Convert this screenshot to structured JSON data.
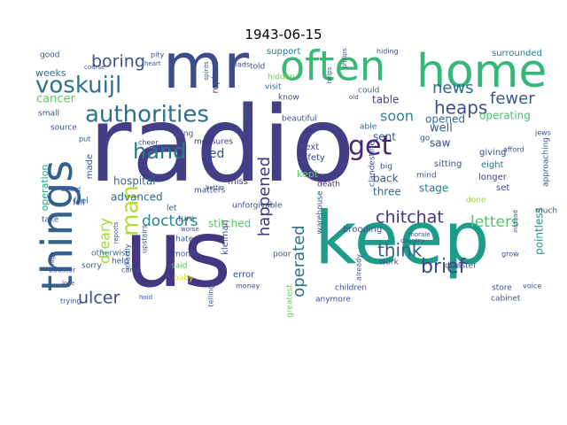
{
  "title": "1943-06-15",
  "words": [
    {
      "text": "radio",
      "color": "#433e85"
    },
    {
      "text": "us",
      "color": "#453681"
    },
    {
      "text": "keep",
      "color": "#1e9c89"
    },
    {
      "text": "mr",
      "color": "#3e4c8a"
    },
    {
      "text": "home",
      "color": "#35b779"
    },
    {
      "text": "often",
      "color": "#38b977"
    },
    {
      "text": "things",
      "color": "#355f8d"
    },
    {
      "text": "authorities",
      "color": "#2d708e"
    },
    {
      "text": "voskuijl",
      "color": "#2c738e"
    },
    {
      "text": "man",
      "color": "#b0dd2f"
    },
    {
      "text": "hand",
      "color": "#2a788e"
    },
    {
      "text": "get",
      "color": "#482475"
    },
    {
      "text": "boring",
      "color": "#3b528b"
    },
    {
      "text": "news",
      "color": "#2f6c8e"
    },
    {
      "text": "heaps",
      "color": "#3b528b"
    },
    {
      "text": "fewer",
      "color": "#38598c"
    },
    {
      "text": "soon",
      "color": "#25858e"
    },
    {
      "text": "happened",
      "color": "#46337e"
    },
    {
      "text": "chitchat",
      "color": "#453581"
    },
    {
      "text": "think",
      "color": "#375b8d"
    },
    {
      "text": "brief",
      "color": "#3e4989"
    },
    {
      "text": "operated",
      "color": "#2d708e"
    },
    {
      "text": "letters",
      "color": "#50c46a"
    },
    {
      "text": "doctors",
      "color": "#23898e"
    },
    {
      "text": "ulcer",
      "color": "#3f4788"
    },
    {
      "text": "dreary",
      "color": "#9bd93c"
    },
    {
      "text": "cancer",
      "color": "#5ec962"
    },
    {
      "text": "weeks",
      "color": "#2e6f8e"
    },
    {
      "text": "hospital",
      "color": "#31688e"
    },
    {
      "text": "advanced",
      "color": "#2f6b8e"
    },
    {
      "text": "stitched",
      "color": "#54c568"
    },
    {
      "text": "fed",
      "color": "#3b518b"
    },
    {
      "text": "sent",
      "color": "#3b528b"
    },
    {
      "text": "opened",
      "color": "#2e6e8e"
    },
    {
      "text": "operating",
      "color": "#4ac16d"
    },
    {
      "text": "well",
      "color": "#34618d"
    },
    {
      "text": "saw",
      "color": "#3e4989"
    },
    {
      "text": "back",
      "color": "#3b528b"
    },
    {
      "text": "three",
      "color": "#31688e"
    },
    {
      "text": "stage",
      "color": "#287d8e"
    },
    {
      "text": "pointless",
      "color": "#1f988b"
    },
    {
      "text": "kept",
      "color": "#5ec962"
    },
    {
      "text": "next",
      "color": "#3e4a89"
    },
    {
      "text": "safety",
      "color": "#404688"
    },
    {
      "text": "fell",
      "color": "#3b528b"
    },
    {
      "text": "made",
      "color": "#3b528b"
    },
    {
      "text": "operation",
      "color": "#22a785"
    },
    {
      "text": "feel",
      "color": "#31688e"
    },
    {
      "text": "giving",
      "color": "#3b528b"
    },
    {
      "text": "sitting",
      "color": "#39568c"
    },
    {
      "text": "eight",
      "color": "#2a768e"
    },
    {
      "text": "longer",
      "color": "#3f4889"
    },
    {
      "text": "set",
      "color": "#3b528b"
    },
    {
      "text": "table",
      "color": "#433e85"
    },
    {
      "text": "support",
      "color": "#2a788e"
    },
    {
      "text": "surrounded",
      "color": "#287c8e"
    },
    {
      "text": "told",
      "color": "#3b528b"
    },
    {
      "text": "hidden",
      "color": "#6ccd5a"
    },
    {
      "text": "replace",
      "color": "#3e4989"
    },
    {
      "text": "visit",
      "color": "#2c728e"
    },
    {
      "text": "know",
      "color": "#3b528b"
    },
    {
      "text": "beautiful",
      "color": "#3b528b"
    },
    {
      "text": "could",
      "color": "#2d708e"
    },
    {
      "text": "able",
      "color": "#355e8d"
    },
    {
      "text": "go",
      "color": "#3b528b"
    },
    {
      "text": "mind",
      "color": "#3b528b"
    },
    {
      "text": "big",
      "color": "#3b528b"
    },
    {
      "text": "death",
      "color": "#472c7a"
    },
    {
      "text": "miss",
      "color": "#463480"
    },
    {
      "text": "matters",
      "color": "#3b528b"
    },
    {
      "text": "measures",
      "color": "#453581"
    },
    {
      "text": "bring",
      "color": "#3b528b"
    },
    {
      "text": "source",
      "color": "#3b528b"
    },
    {
      "text": "small",
      "color": "#3b528b"
    },
    {
      "text": "good",
      "color": "#3b528b"
    },
    {
      "text": "take",
      "color": "#3b528b"
    },
    {
      "text": "otherwise",
      "color": "#2c738e"
    },
    {
      "text": "sorry",
      "color": "#3b528b"
    },
    {
      "text": "came",
      "color": "#3b528b"
    },
    {
      "text": "help",
      "color": "#3b528b"
    },
    {
      "text": "hate",
      "color": "#3b528b"
    },
    {
      "text": "month",
      "color": "#3b528b"
    },
    {
      "text": "said",
      "color": "#5ec962"
    },
    {
      "text": "baby",
      "color": "#d8e219"
    },
    {
      "text": "let",
      "color": "#3b528b"
    },
    {
      "text": "turn",
      "color": "#3b528b"
    },
    {
      "text": "kleiman",
      "color": "#3b528b"
    },
    {
      "text": "error",
      "color": "#3b528b"
    },
    {
      "text": "money",
      "color": "#3b528b"
    },
    {
      "text": "poor",
      "color": "#3b528b"
    },
    {
      "text": "unforgivable",
      "color": "#3b528b"
    },
    {
      "text": "warehouse",
      "color": "#3b528b"
    },
    {
      "text": "anymore",
      "color": "#3b528b"
    },
    {
      "text": "children",
      "color": "#3b528b"
    },
    {
      "text": "brooding",
      "color": "#3b528b"
    },
    {
      "text": "clandestine",
      "color": "#3b528b"
    },
    {
      "text": "work",
      "color": "#3b528b"
    },
    {
      "text": "disaster",
      "color": "#3b528b"
    },
    {
      "text": "store",
      "color": "#3b528b"
    },
    {
      "text": "cabinet",
      "color": "#3b528b"
    },
    {
      "text": "done",
      "color": "#95d840"
    },
    {
      "text": "much",
      "color": "#3b528b"
    },
    {
      "text": "grow",
      "color": "#3b528b"
    },
    {
      "text": "voice",
      "color": "#3b528b"
    },
    {
      "text": "already",
      "color": "#3b528b"
    },
    {
      "text": "greatest",
      "color": "#6ccd5a"
    },
    {
      "text": "telling",
      "color": "#3b528b"
    },
    {
      "text": "booster",
      "color": "#3b528b"
    },
    {
      "text": "trying",
      "color": "#3b528b"
    },
    {
      "text": "lose",
      "color": "#3b528b"
    },
    {
      "text": "hold",
      "color": "#3b528b"
    },
    {
      "text": "upstairs",
      "color": "#3b528b"
    },
    {
      "text": "exactly",
      "color": "#3b528b"
    },
    {
      "text": "reports",
      "color": "#3b528b"
    },
    {
      "text": "worse",
      "color": "#3b528b"
    },
    {
      "text": "better",
      "color": "#3b528b"
    },
    {
      "text": "cheer",
      "color": "#3b528b"
    },
    {
      "text": "spirits",
      "color": "#3b528b"
    },
    {
      "text": "heads",
      "color": "#3b528b"
    },
    {
      "text": "people",
      "color": "#3b528b"
    },
    {
      "text": "heart",
      "color": "#3b528b"
    },
    {
      "text": "pity",
      "color": "#3b528b"
    },
    {
      "text": "course",
      "color": "#3b528b"
    },
    {
      "text": "hiding",
      "color": "#3b528b"
    },
    {
      "text": "old",
      "color": "#3b528b"
    },
    {
      "text": "helps",
      "color": "#3b528b"
    },
    {
      "text": "jews",
      "color": "#3b528b"
    },
    {
      "text": "afford",
      "color": "#3b528b"
    },
    {
      "text": "approaching",
      "color": "#3b528b"
    },
    {
      "text": "instead",
      "color": "#3b528b"
    },
    {
      "text": "morale",
      "color": "#3b528b"
    },
    {
      "text": "country",
      "color": "#3b528b"
    },
    {
      "text": "put",
      "color": "#3b528b"
    },
    {
      "text": "bound",
      "color": "#3b528b"
    },
    {
      "text": "high",
      "color": "#3b528b"
    },
    {
      "text": "philips",
      "color": "#3b528b"
    }
  ]
}
